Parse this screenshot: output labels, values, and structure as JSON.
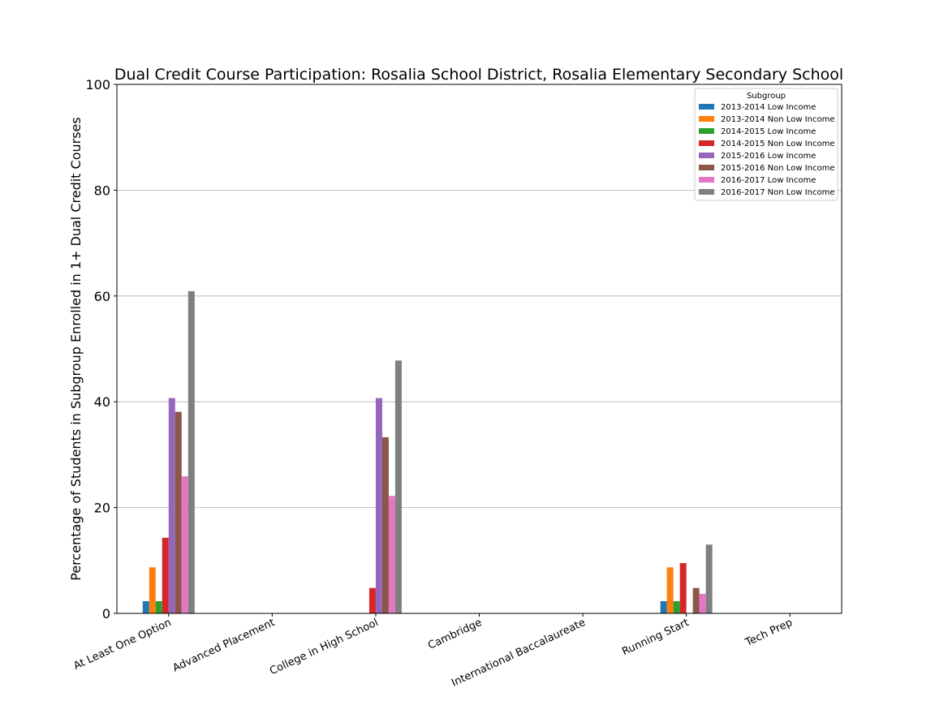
{
  "chart_data": {
    "type": "bar",
    "title": "Dual Credit Course Participation: Rosalia School District, Rosalia Elementary   Secondary School",
    "xlabel": "",
    "ylabel": "Percentage of Students in Subgroup Enrolled in 1+ Dual Credit Courses",
    "ylim": [
      0,
      100
    ],
    "yticks": [
      0,
      20,
      40,
      60,
      80,
      100
    ],
    "grid": "horizontal",
    "legend_title": "Subgroup",
    "legend_position": "top-right",
    "categories": [
      "At Least One Option",
      "Advanced Placement",
      "College in High School",
      "Cambridge",
      "International Baccalaureate",
      "Running Start",
      "Tech Prep"
    ],
    "series": [
      {
        "name": "2013-2014 Low Income",
        "color": "#1f77b4",
        "values": [
          2.3,
          0,
          0,
          0,
          0,
          2.3,
          0
        ]
      },
      {
        "name": "2013-2014 Non Low Income",
        "color": "#ff7f0e",
        "values": [
          8.7,
          0,
          0,
          0,
          0,
          8.7,
          0
        ]
      },
      {
        "name": "2014-2015 Low Income",
        "color": "#2ca02c",
        "values": [
          2.3,
          0,
          0,
          0,
          0,
          2.3,
          0
        ]
      },
      {
        "name": "2014-2015 Non Low Income",
        "color": "#d62728",
        "values": [
          14.3,
          0,
          4.8,
          0,
          0,
          9.5,
          0
        ]
      },
      {
        "name": "2015-2016 Low Income",
        "color": "#9467bd",
        "values": [
          40.7,
          0,
          40.7,
          0,
          0,
          0,
          0
        ]
      },
      {
        "name": "2015-2016 Non Low Income",
        "color": "#8c564b",
        "values": [
          38.1,
          0,
          33.3,
          0,
          0,
          4.8,
          0
        ]
      },
      {
        "name": "2016-2017 Low Income",
        "color": "#e377c2",
        "values": [
          25.9,
          0,
          22.2,
          0,
          0,
          3.7,
          0
        ]
      },
      {
        "name": "2016-2017 Non Low Income",
        "color": "#7f7f7f",
        "values": [
          60.9,
          0,
          47.8,
          0,
          0,
          13.0,
          0
        ]
      }
    ]
  }
}
